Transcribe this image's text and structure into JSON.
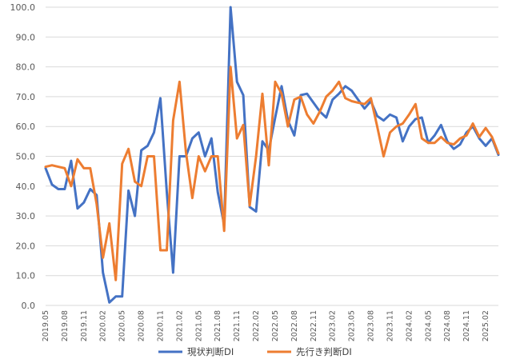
{
  "chart_data": {
    "type": "line",
    "title": "",
    "xlabel": "",
    "ylabel": "",
    "ylim": [
      0,
      100
    ],
    "ytick_labels": [
      "0.0",
      "10.0",
      "20.0",
      "30.0",
      "40.0",
      "50.0",
      "60.0",
      "70.0",
      "80.0",
      "90.0",
      "100.0"
    ],
    "ytick_values": [
      0,
      10,
      20,
      30,
      40,
      50,
      60,
      70,
      80,
      90,
      100
    ],
    "grid": true,
    "legend_position": "bottom",
    "xtick_labels": [
      "2019.05",
      "2019.08",
      "2019.11",
      "2020.02",
      "2020.05",
      "2020.08",
      "2020.11",
      "2021.02",
      "2021.05",
      "2021.08",
      "2021.11",
      "2022.02",
      "2022.05",
      "2022.08",
      "2022.11",
      "2023.02",
      "2023.05",
      "2023.08",
      "2023.11",
      "2024.02",
      "2024.05",
      "2024.08",
      "2024.11",
      "2025.02"
    ],
    "x": [
      "2019.05",
      "2019.06",
      "2019.07",
      "2019.08",
      "2019.09",
      "2019.10",
      "2019.11",
      "2019.12",
      "2020.01",
      "2020.02",
      "2020.03",
      "2020.04",
      "2020.05",
      "2020.06",
      "2020.07",
      "2020.08",
      "2020.09",
      "2020.10",
      "2020.11",
      "2020.12",
      "2021.01",
      "2021.02",
      "2021.03",
      "2021.04",
      "2021.05",
      "2021.06",
      "2021.07",
      "2021.08",
      "2021.09",
      "2021.10",
      "2021.11",
      "2021.12",
      "2022.01",
      "2022.02",
      "2022.03",
      "2022.04",
      "2022.05",
      "2022.06",
      "2022.07",
      "2022.08",
      "2022.09",
      "2022.10",
      "2022.11",
      "2022.12",
      "2023.01",
      "2023.02",
      "2023.03",
      "2023.04",
      "2023.05",
      "2023.06",
      "2023.07",
      "2023.08",
      "2023.09",
      "2023.10",
      "2023.11",
      "2023.12",
      "2024.01",
      "2024.02",
      "2024.03",
      "2024.04",
      "2024.05",
      "2024.06",
      "2024.07",
      "2024.08",
      "2024.09",
      "2024.10",
      "2024.11",
      "2024.12",
      "2025.01",
      "2025.02",
      "2025.03",
      "2025.04"
    ],
    "series": [
      {
        "name": "現状判断DI",
        "color": "#4472c4",
        "values": [
          46,
          40.5,
          39,
          39,
          48.5,
          32.5,
          34.5,
          39,
          37,
          11,
          1,
          3,
          3,
          38.5,
          30,
          52,
          53.5,
          58,
          69.5,
          38,
          11,
          50,
          50,
          56,
          58,
          50,
          56,
          38,
          27,
          100,
          75,
          70.5,
          33,
          31.5,
          55,
          52,
          63,
          73.5,
          62,
          57,
          70.5,
          71,
          68,
          65,
          63,
          69,
          71,
          73.5,
          72,
          69,
          66,
          68.5,
          63.5,
          62,
          64,
          63,
          55,
          60,
          62.5,
          63,
          54.5,
          57,
          60.5,
          55,
          52.5,
          54,
          58,
          60,
          56,
          53.5,
          56,
          50.5
        ]
      },
      {
        "name": "先行き判断DI",
        "color": "#ed7d31",
        "values": [
          46.5,
          47,
          46.5,
          46,
          40,
          49,
          46,
          46,
          34,
          16,
          27.5,
          8.5,
          47.5,
          52.5,
          41.5,
          40,
          50,
          50,
          18.5,
          18.5,
          62,
          75,
          51.5,
          36,
          50,
          45,
          50,
          50,
          25,
          80,
          56,
          60.5,
          33.5,
          50,
          71,
          47,
          75,
          71,
          60,
          69,
          70,
          64,
          61,
          65,
          70,
          72,
          75,
          69.5,
          68.5,
          68,
          67.5,
          69.5,
          60,
          50,
          58,
          60,
          61,
          64,
          67.5,
          56,
          54.5,
          54.5,
          56.5,
          54.5,
          54,
          56,
          57,
          61,
          56.5,
          59.5,
          56.5,
          51
        ]
      }
    ]
  },
  "legend": {
    "items": [
      {
        "label": "現状判断DI",
        "color": "#4472c4"
      },
      {
        "label": "先行き判断DI",
        "color": "#ed7d31"
      }
    ]
  }
}
